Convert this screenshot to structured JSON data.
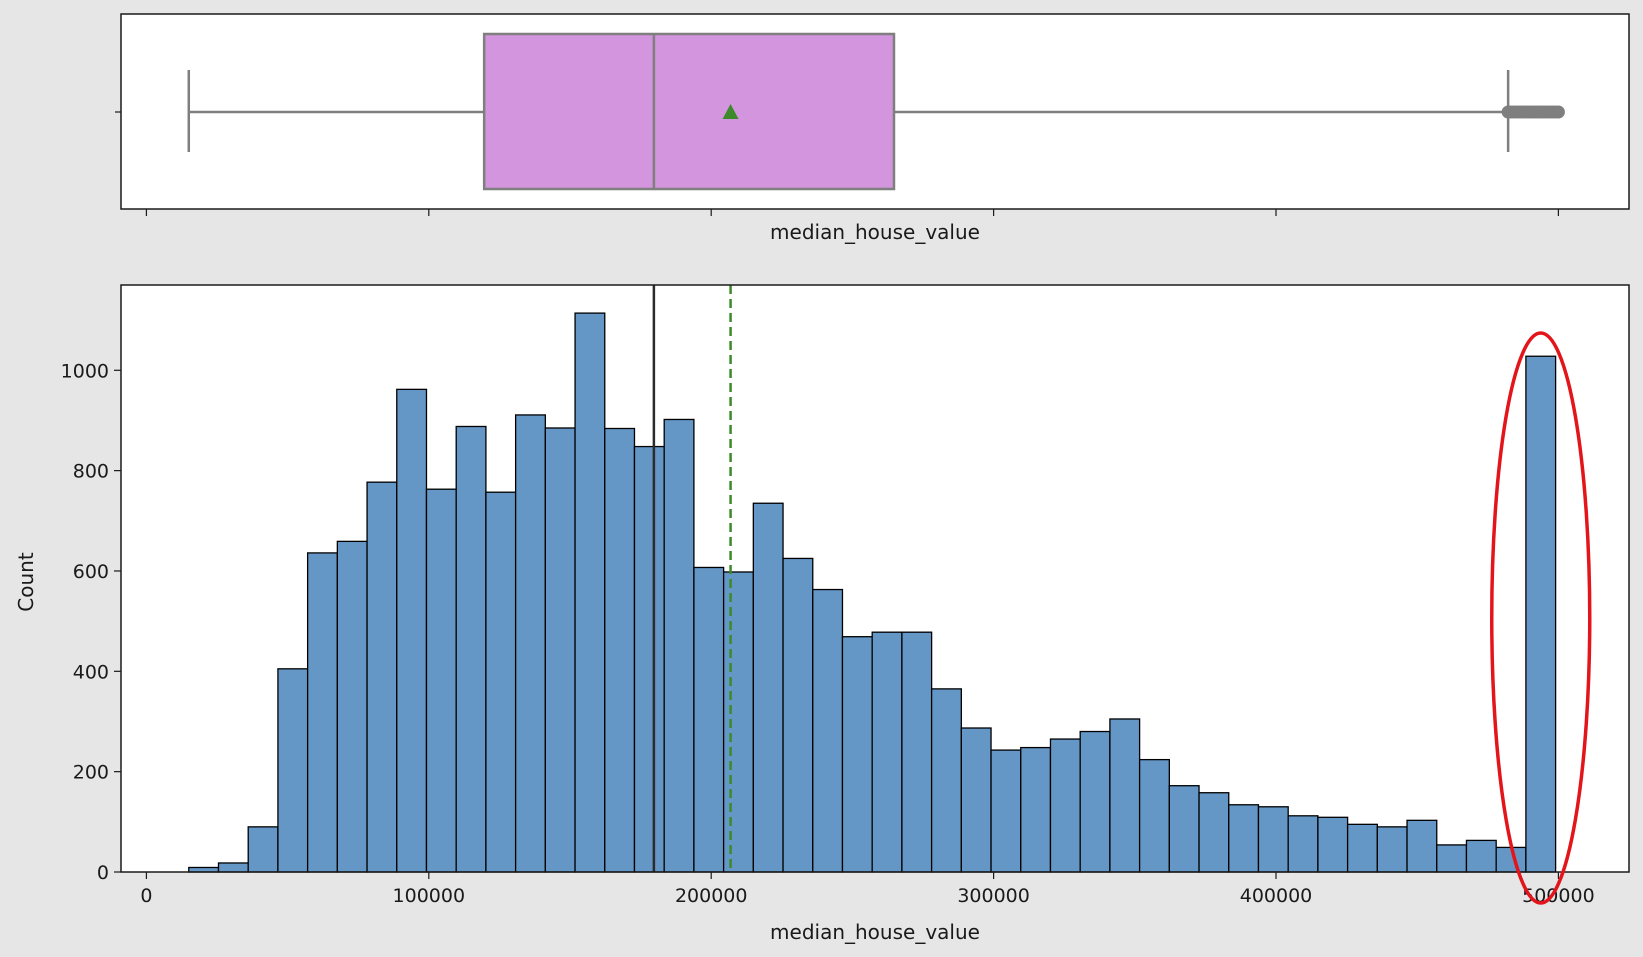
{
  "chart_data": [
    {
      "type": "box",
      "xlabel": "median_house_value",
      "xlim": [
        -9000,
        525000
      ],
      "box": {
        "whisker_low": 14999,
        "q1": 119600,
        "median": 179700,
        "mean": 206855,
        "q3": 264725,
        "whisker_high": 482200
      },
      "outliers_range": [
        482200,
        500001
      ],
      "colors": {
        "box": "#d395de",
        "edge": "#7f7f7f",
        "mean_marker": "#3d8a2a"
      }
    },
    {
      "type": "bar",
      "xlabel": "median_house_value",
      "ylabel": "Count",
      "xlim": [
        -9000,
        525000
      ],
      "ylim": [
        0,
        1170
      ],
      "x_ticks": [
        0,
        100000,
        200000,
        300000,
        400000,
        500000
      ],
      "x_tick_labels": [
        "0",
        "100000",
        "200000",
        "300000",
        "400000",
        "500000"
      ],
      "y_ticks": [
        0,
        200,
        400,
        600,
        800,
        1000
      ],
      "y_tick_labels": [
        "0",
        "200",
        "400",
        "600",
        "800",
        "1000"
      ],
      "bin_start": 14999,
      "bin_width": 10522,
      "values": [
        9,
        18,
        90,
        405,
        636,
        659,
        777,
        962,
        763,
        888,
        757,
        911,
        885,
        1114,
        884,
        848,
        902,
        607,
        598,
        735,
        625,
        563,
        469,
        478,
        478,
        365,
        287,
        243,
        248,
        265,
        280,
        305,
        224,
        172,
        158,
        134,
        130,
        112,
        109,
        95,
        90,
        103,
        54,
        63,
        49,
        1028
      ],
      "median_line": 179700,
      "mean_line": 206855,
      "colors": {
        "bar": "#6497c6",
        "edge": "#000000",
        "median_line": "#2b2b2b",
        "mean_line": "#3d8a2a",
        "highlight": "#e3151a"
      }
    }
  ]
}
